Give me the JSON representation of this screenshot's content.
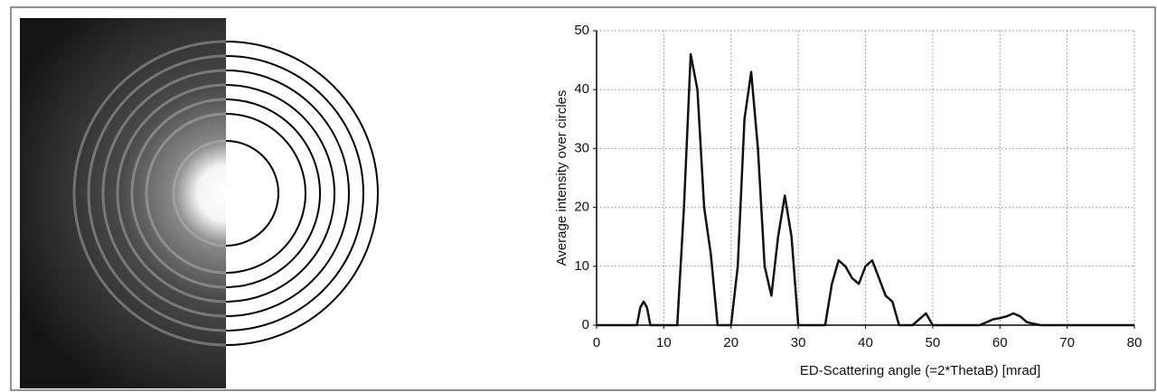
{
  "chart_data": {
    "type": "line",
    "xlabel": "ED-Scattering angle (=2*ThetaB) [mrad]",
    "ylabel": "Average intensity over circles",
    "x": [
      0,
      6,
      6.5,
      7,
      7.5,
      8,
      12,
      13,
      14,
      15,
      16,
      17,
      18,
      20,
      21,
      22,
      23,
      24,
      25,
      26,
      27,
      28,
      29,
      30,
      34,
      35,
      36,
      37,
      38,
      39,
      40,
      41,
      42,
      43,
      44,
      45,
      47,
      48,
      49,
      50,
      57,
      59,
      60,
      61,
      62,
      63,
      64,
      66,
      80
    ],
    "series": [
      {
        "color": "#111111",
        "values": [
          0,
          0,
          3,
          4,
          3,
          0,
          0,
          20,
          46,
          40,
          20,
          12,
          0,
          0,
          10,
          35,
          43,
          30,
          10,
          5,
          15,
          22,
          15,
          0,
          0,
          7,
          11,
          10,
          8,
          7,
          10,
          11,
          8,
          5,
          4,
          0,
          0,
          1,
          2,
          0,
          0,
          1,
          1.2,
          1.5,
          2,
          1.5,
          0.5,
          0,
          0
        ]
      }
    ],
    "xlim": [
      0,
      80
    ],
    "xticks": [
      0,
      10,
      20,
      30,
      40,
      50,
      60,
      70,
      80
    ],
    "ylim": [
      0,
      50
    ],
    "yticks": [
      0,
      10,
      20,
      30,
      40,
      50
    ],
    "grid": true
  }
}
